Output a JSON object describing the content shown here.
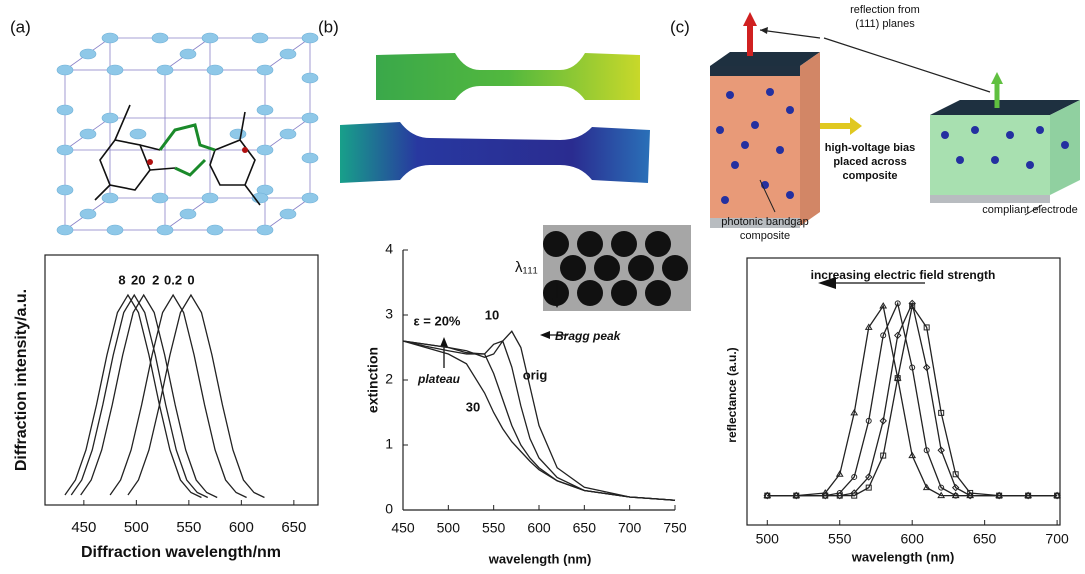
{
  "panel_labels": [
    "(a)",
    "(b)",
    "(c)"
  ],
  "diagram": {
    "reflection": [
      "reflection from",
      "(111) planes"
    ],
    "bias": [
      "high-voltage bias",
      "placed across",
      "composite"
    ],
    "composite": [
      "photonic bandgap",
      "composite"
    ],
    "electrode": "compliant electrode"
  },
  "chart_data": [
    {
      "type": "line",
      "xlabel": "Diffraction wavelength/nm",
      "ylabel": "Diffraction intensity/a.u.",
      "xlim": [
        413,
        673
      ],
      "ylim": [
        0,
        1
      ],
      "xticks": [
        450,
        500,
        550,
        600,
        650
      ],
      "series": [
        {
          "name": "8",
          "color": "#222222",
          "x": [
            432,
            442,
            452,
            462,
            472,
            482,
            492,
            502,
            512,
            522,
            532,
            542,
            552,
            562
          ],
          "values": [
            0.04,
            0.1,
            0.22,
            0.4,
            0.6,
            0.77,
            0.84,
            0.77,
            0.6,
            0.4,
            0.22,
            0.1,
            0.05,
            0.03
          ]
        },
        {
          "name": "20",
          "color": "#222222",
          "x": [
            438,
            448,
            458,
            468,
            478,
            488,
            498,
            508,
            518,
            528,
            538,
            548,
            558,
            568
          ],
          "values": [
            0.04,
            0.1,
            0.22,
            0.4,
            0.6,
            0.77,
            0.84,
            0.77,
            0.6,
            0.4,
            0.22,
            0.1,
            0.05,
            0.03
          ]
        },
        {
          "name": "2",
          "color": "#222222",
          "x": [
            447,
            457,
            467,
            477,
            487,
            497,
            507,
            517,
            527,
            537,
            547,
            557,
            567,
            577
          ],
          "values": [
            0.04,
            0.1,
            0.22,
            0.4,
            0.6,
            0.77,
            0.84,
            0.77,
            0.6,
            0.4,
            0.22,
            0.1,
            0.05,
            0.03
          ]
        },
        {
          "name": "0.2",
          "color": "#222222",
          "x": [
            475,
            485,
            495,
            505,
            515,
            525,
            535,
            545,
            555,
            565,
            575,
            585,
            595,
            605
          ],
          "values": [
            0.04,
            0.1,
            0.22,
            0.4,
            0.6,
            0.77,
            0.84,
            0.77,
            0.6,
            0.4,
            0.22,
            0.1,
            0.05,
            0.03
          ]
        },
        {
          "name": "0",
          "color": "#222222",
          "x": [
            492,
            502,
            512,
            522,
            532,
            542,
            552,
            562,
            572,
            582,
            592,
            602,
            612,
            622
          ],
          "values": [
            0.04,
            0.1,
            0.22,
            0.4,
            0.6,
            0.77,
            0.84,
            0.77,
            0.6,
            0.4,
            0.22,
            0.1,
            0.05,
            0.03
          ]
        }
      ]
    },
    {
      "type": "line",
      "xlabel": "wavelength (nm)",
      "ylabel": "extinction",
      "xlim": [
        450,
        750
      ],
      "ylim": [
        0,
        4
      ],
      "xticks": [
        450,
        500,
        550,
        600,
        650,
        700,
        750
      ],
      "yticks": [
        0,
        1,
        2,
        3,
        4
      ],
      "annotations": [
        "λ₁₁₁",
        "Bragg peak",
        "plateau"
      ],
      "series": [
        {
          "name": "orig",
          "color": "#222222",
          "x": [
            450,
            475,
            500,
            520,
            540,
            550,
            560,
            570,
            580,
            590,
            600,
            620,
            650,
            700,
            750
          ],
          "values": [
            2.6,
            2.55,
            2.5,
            2.45,
            2.35,
            2.4,
            2.6,
            2.75,
            2.5,
            1.9,
            1.3,
            0.65,
            0.35,
            0.2,
            0.15
          ]
        },
        {
          "name": "10",
          "color": "#222222",
          "x": [
            450,
            475,
            500,
            520,
            540,
            550,
            560,
            570,
            580,
            590,
            600,
            620,
            650,
            700,
            750
          ],
          "values": [
            2.6,
            2.55,
            2.5,
            2.42,
            2.4,
            2.55,
            2.6,
            2.2,
            1.6,
            1.1,
            0.8,
            0.5,
            0.3,
            0.2,
            0.15
          ]
        },
        {
          "name": "ε = 20%",
          "color": "#222222",
          "x": [
            450,
            475,
            500,
            520,
            540,
            550,
            560,
            570,
            580,
            590,
            600,
            620,
            650,
            700,
            750
          ],
          "values": [
            2.6,
            2.52,
            2.45,
            2.4,
            2.4,
            2.1,
            1.7,
            1.3,
            1.0,
            0.8,
            0.65,
            0.45,
            0.3,
            0.2,
            0.15
          ]
        },
        {
          "name": "30",
          "color": "#222222",
          "x": [
            450,
            475,
            500,
            520,
            540,
            550,
            560,
            570,
            580,
            590,
            600,
            620,
            650,
            700,
            750
          ],
          "values": [
            2.6,
            2.5,
            2.4,
            2.25,
            1.8,
            1.5,
            1.25,
            1.05,
            0.9,
            0.75,
            0.62,
            0.45,
            0.3,
            0.2,
            0.15
          ]
        }
      ]
    },
    {
      "type": "line",
      "xlabel": "wavelength (nm)",
      "ylabel": "reflectance (a.u.)",
      "xlim": [
        486,
        702
      ],
      "ylim": [
        0,
        1
      ],
      "xticks": [
        500,
        550,
        600,
        650,
        700
      ],
      "annotations": [
        "increasing electric field strength"
      ],
      "series": [
        {
          "color": "#222222",
          "marker": "triangle",
          "x": [
            500,
            520,
            540,
            550,
            560,
            570,
            580,
            590,
            600,
            610,
            620,
            630,
            640,
            660,
            680,
            700
          ],
          "values": [
            0.11,
            0.11,
            0.12,
            0.19,
            0.42,
            0.74,
            0.82,
            0.55,
            0.26,
            0.14,
            0.11,
            0.11,
            0.11,
            0.11,
            0.11,
            0.11
          ]
        },
        {
          "color": "#222222",
          "marker": "circle",
          "x": [
            500,
            520,
            540,
            550,
            560,
            570,
            580,
            590,
            600,
            610,
            620,
            630,
            640,
            660,
            680,
            700
          ],
          "values": [
            0.11,
            0.11,
            0.11,
            0.12,
            0.18,
            0.39,
            0.71,
            0.83,
            0.59,
            0.28,
            0.14,
            0.11,
            0.11,
            0.11,
            0.11,
            0.11
          ]
        },
        {
          "color": "#222222",
          "marker": "diamond",
          "x": [
            500,
            520,
            540,
            550,
            560,
            570,
            580,
            590,
            600,
            610,
            620,
            630,
            640,
            660,
            680,
            700
          ],
          "values": [
            0.11,
            0.11,
            0.11,
            0.11,
            0.12,
            0.18,
            0.39,
            0.71,
            0.83,
            0.59,
            0.28,
            0.14,
            0.11,
            0.11,
            0.11,
            0.11
          ]
        },
        {
          "color": "#222222",
          "marker": "square",
          "x": [
            500,
            520,
            540,
            550,
            560,
            570,
            580,
            590,
            600,
            610,
            620,
            630,
            640,
            660,
            680,
            700
          ],
          "values": [
            0.11,
            0.11,
            0.11,
            0.11,
            0.11,
            0.14,
            0.26,
            0.55,
            0.82,
            0.74,
            0.42,
            0.19,
            0.12,
            0.11,
            0.11,
            0.11
          ]
        }
      ]
    }
  ]
}
